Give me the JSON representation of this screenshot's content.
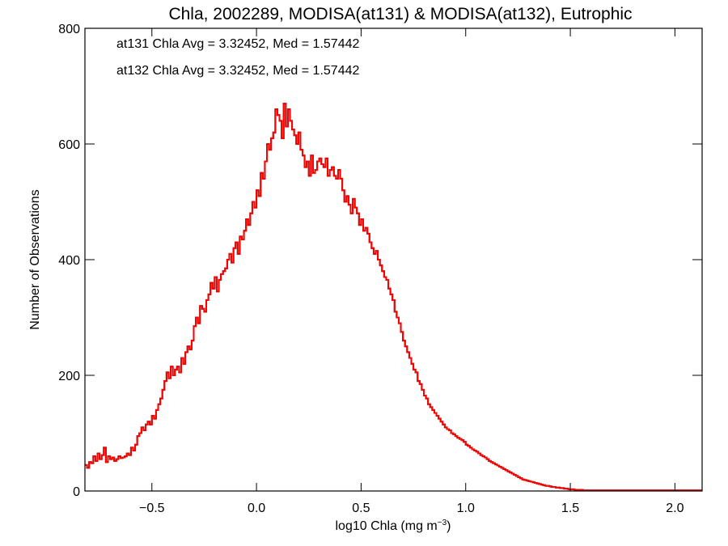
{
  "chart_data": {
    "type": "histogram",
    "title": "Chla, 2002289, MODISA(at131) & MODISA(at132), Eutrophic",
    "xlabel_main": "log10 Chla (mg m",
    "xlabel_sup": "−3",
    "xlabel_close": ")",
    "ylabel": "Number of Observations",
    "xlim": [
      -0.82,
      2.13
    ],
    "ylim": [
      0,
      800
    ],
    "xticks": [
      -0.5,
      0.0,
      0.5,
      1.0,
      1.5,
      2.0
    ],
    "xtick_labels": [
      "−0.5",
      "0.0",
      "0.5",
      "1.0",
      "1.5",
      "2.0"
    ],
    "yticks": [
      0,
      200,
      400,
      600,
      800
    ],
    "ytick_labels": [
      "0",
      "200",
      "400",
      "600",
      "800"
    ],
    "grid": false,
    "annotations": [
      {
        "text": "at131 Chla Avg = 3.32452, Med = 1.57442",
        "color": "#000000"
      },
      {
        "text": "at132 Chla Avg = 3.32452, Med = 1.57442",
        "color": "#ff0000"
      }
    ],
    "bin_width": 0.01,
    "x_start": -0.82,
    "series": [
      {
        "name": "at131",
        "color": "#000000",
        "counts": [
          45,
          40,
          50,
          48,
          60,
          52,
          65,
          55,
          62,
          75,
          50,
          60,
          55,
          58,
          52,
          55,
          60,
          57,
          58,
          60,
          65,
          62,
          75,
          70,
          80,
          95,
          100,
          110,
          105,
          115,
          120,
          115,
          130,
          125,
          140,
          150,
          160,
          175,
          190,
          205,
          195,
          215,
          200,
          210,
          215,
          205,
          230,
          220,
          240,
          250,
          245,
          260,
          285,
          300,
          290,
          320,
          315,
          310,
          330,
          340,
          360,
          350,
          370,
          345,
          365,
          375,
          380,
          385,
          400,
          410,
          395,
          420,
          430,
          410,
          440,
          435,
          450,
          470,
          460,
          480,
          500,
          490,
          520,
          510,
          550,
          540,
          570,
          600,
          590,
          610,
          620,
          660,
          650,
          640,
          610,
          670,
          630,
          660,
          640,
          625,
          615,
          600,
          620,
          590,
          580,
          560,
          570,
          545,
          580,
          550,
          555,
          570,
          575,
          565,
          560,
          575,
          545,
          555,
          560,
          545,
          540,
          555,
          540,
          520,
          500,
          510,
          495,
          480,
          505,
          490,
          480,
          460,
          470,
          450,
          455,
          445,
          430,
          420,
          410,
          415,
          400,
          390,
          380,
          370,
          365,
          350,
          340,
          330,
          310,
          300,
          290,
          275,
          260,
          250,
          240,
          230,
          220,
          210,
          205,
          190,
          185,
          175,
          165,
          160,
          150,
          145,
          140,
          135,
          130,
          125,
          120,
          115,
          110,
          107,
          105,
          100,
          98,
          95,
          92,
          90,
          88,
          85,
          80,
          78,
          75,
          72,
          70,
          68,
          65,
          62,
          60,
          58,
          55,
          52,
          50,
          48,
          46,
          44,
          42,
          40,
          38,
          36,
          34,
          32,
          30,
          28,
          26,
          24,
          22,
          20,
          19,
          18,
          17,
          16,
          15,
          14,
          13,
          12,
          11,
          10,
          9,
          9,
          8,
          7,
          7,
          6,
          6,
          5,
          5,
          4,
          4,
          3,
          3,
          3,
          2,
          2,
          2,
          2,
          1,
          1,
          1,
          1,
          1,
          1,
          1,
          1,
          1,
          1,
          1,
          1,
          1,
          1,
          1,
          1,
          1,
          1,
          1,
          1,
          1,
          1,
          1,
          1,
          1,
          1,
          1,
          1,
          1,
          1,
          1,
          1,
          1,
          1,
          1,
          1,
          1,
          1,
          1,
          1,
          1,
          1,
          1,
          1,
          1,
          1,
          1,
          1,
          1,
          1,
          1,
          1,
          1,
          1,
          1,
          1,
          1
        ]
      },
      {
        "name": "at132",
        "color": "#ff0000",
        "counts": [
          45,
          40,
          50,
          48,
          60,
          52,
          65,
          55,
          62,
          75,
          50,
          60,
          55,
          58,
          52,
          55,
          60,
          57,
          58,
          60,
          65,
          62,
          75,
          70,
          80,
          95,
          100,
          110,
          105,
          115,
          120,
          115,
          130,
          125,
          140,
          150,
          160,
          175,
          190,
          205,
          195,
          215,
          200,
          210,
          215,
          205,
          230,
          220,
          240,
          250,
          245,
          260,
          285,
          300,
          290,
          320,
          315,
          310,
          330,
          340,
          360,
          350,
          370,
          345,
          365,
          375,
          380,
          385,
          400,
          410,
          395,
          420,
          430,
          410,
          440,
          435,
          450,
          470,
          460,
          480,
          500,
          490,
          520,
          510,
          550,
          540,
          570,
          600,
          590,
          610,
          620,
          660,
          650,
          640,
          610,
          670,
          630,
          660,
          640,
          625,
          615,
          600,
          620,
          590,
          580,
          560,
          570,
          545,
          580,
          550,
          555,
          570,
          575,
          565,
          560,
          575,
          545,
          555,
          560,
          545,
          540,
          555,
          540,
          520,
          500,
          510,
          495,
          480,
          505,
          490,
          480,
          460,
          470,
          450,
          455,
          445,
          430,
          420,
          410,
          415,
          400,
          390,
          380,
          370,
          365,
          350,
          340,
          330,
          310,
          300,
          290,
          275,
          260,
          250,
          240,
          230,
          220,
          210,
          205,
          190,
          185,
          175,
          165,
          160,
          150,
          145,
          140,
          135,
          130,
          125,
          120,
          115,
          110,
          107,
          105,
          100,
          98,
          95,
          92,
          90,
          88,
          85,
          80,
          78,
          75,
          72,
          70,
          68,
          65,
          62,
          60,
          58,
          55,
          52,
          50,
          48,
          46,
          44,
          42,
          40,
          38,
          36,
          34,
          32,
          30,
          28,
          26,
          24,
          22,
          20,
          19,
          18,
          17,
          16,
          15,
          14,
          13,
          12,
          11,
          10,
          9,
          9,
          8,
          7,
          7,
          6,
          6,
          5,
          5,
          4,
          4,
          3,
          3,
          3,
          2,
          2,
          2,
          2,
          1,
          1,
          1,
          1,
          1,
          1,
          1,
          1,
          1,
          1,
          1,
          1,
          1,
          1,
          1,
          1,
          1,
          1,
          1,
          1,
          1,
          1,
          1,
          1,
          1,
          1,
          1,
          1,
          1,
          1,
          1,
          1,
          1,
          1,
          1,
          1,
          1,
          1,
          1,
          1,
          1,
          1,
          1,
          1,
          1,
          1,
          1,
          1,
          1,
          1,
          1,
          1,
          1,
          1,
          1,
          1,
          1
        ]
      }
    ]
  }
}
